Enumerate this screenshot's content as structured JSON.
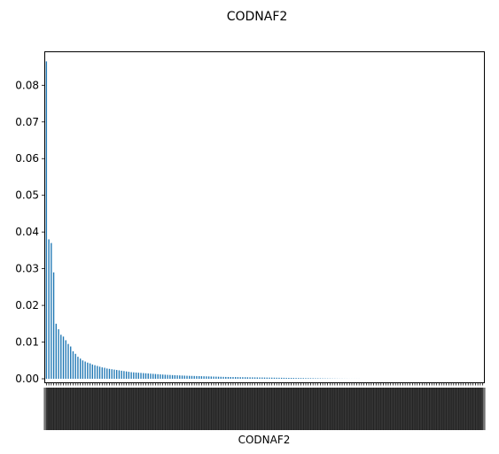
{
  "chart_data": {
    "type": "bar",
    "title": "CODNAF2",
    "xlabel": "CODNAF2",
    "ylabel": "",
    "ylim": [
      0,
      0.089
    ],
    "yticks": [
      0.0,
      0.01,
      0.02,
      0.03,
      0.04,
      0.05,
      0.06,
      0.07,
      0.08
    ],
    "ytick_labels": [
      "0.00",
      "0.01",
      "0.02",
      "0.03",
      "0.04",
      "0.05",
      "0.06",
      "0.07",
      "0.08"
    ],
    "grid": false,
    "legend": "none",
    "bar_color": "#1f77b4",
    "values": [
      0.0865,
      0.038,
      0.037,
      0.029,
      0.015,
      0.0135,
      0.012,
      0.0115,
      0.0105,
      0.0095,
      0.0088,
      0.0075,
      0.0068,
      0.006,
      0.0055,
      0.005,
      0.0047,
      0.0044,
      0.0042,
      0.0039,
      0.0037,
      0.0035,
      0.0033,
      0.0031,
      0.003,
      0.0028,
      0.0027,
      0.0026,
      0.0025,
      0.0024,
      0.0023,
      0.0022,
      0.0021,
      0.002,
      0.0019,
      0.0018,
      0.00175,
      0.0017,
      0.00165,
      0.0016,
      0.00155,
      0.0015,
      0.00145,
      0.0014,
      0.00135,
      0.0013,
      0.00125,
      0.0012,
      0.00115,
      0.0011,
      0.00107,
      0.00104,
      0.001,
      0.00097,
      0.00094,
      0.00091,
      0.00088,
      0.00085,
      0.00082,
      0.0008,
      0.00078,
      0.00076,
      0.00074,
      0.00072,
      0.0007,
      0.00068,
      0.00066,
      0.00064,
      0.00062,
      0.0006,
      0.00058,
      0.00056,
      0.00054,
      0.00052,
      0.0005,
      0.00049,
      0.00048,
      0.00047,
      0.00046,
      0.00045,
      0.00044,
      0.00043,
      0.00042,
      0.00041,
      0.0004,
      0.00039,
      0.00038,
      0.00037,
      0.00036,
      0.00035,
      0.00034,
      0.00033,
      0.00032,
      0.00031,
      0.0003,
      0.00029,
      0.00028,
      0.00027,
      0.00026,
      0.00025,
      0.00024,
      0.00023,
      0.00022,
      0.00021,
      0.0002,
      0.00019,
      0.00018,
      0.00017,
      0.00016,
      0.00015,
      0.00014,
      0.00013,
      0.00012,
      0.00011,
      0.0001,
      9e-05,
      8e-05,
      7e-05,
      6e-05,
      5e-05,
      4e-05,
      3e-05,
      3e-05,
      2e-05,
      2e-05,
      1e-05,
      1e-05,
      1e-05,
      1e-05,
      1e-05,
      0.0,
      0.0,
      0.0,
      0.0,
      0.0,
      0.0,
      0.0,
      0.0,
      0.0,
      0.0,
      0.0,
      0.0,
      0.0,
      0.0,
      0.0,
      0.0,
      0.0,
      0.0,
      0.0,
      0.0,
      0.0,
      0.0,
      0.0,
      0.0,
      0.0,
      0.0,
      0.0,
      0.0,
      0.0,
      0.0,
      0.0,
      0.0,
      0.0,
      0.0,
      0.0,
      0.0,
      0.0,
      0.0,
      0.0,
      0.0,
      0.0,
      0.0,
      0.0,
      0.0,
      0.0,
      0.0,
      0.0,
      0.0,
      0.0,
      0.0,
      0.0
    ]
  }
}
